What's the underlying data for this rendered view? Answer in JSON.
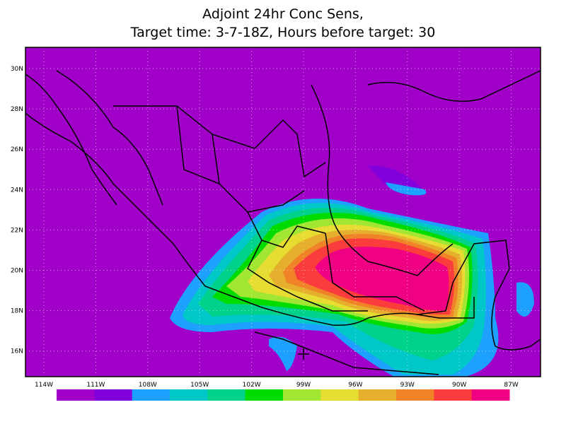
{
  "title": {
    "line1": "Adjoint 24hr Conc Sens,",
    "line2": "Target time: 3-7-18Z, Hours before target: 30"
  },
  "lat_labels": [
    "30N",
    "28N",
    "26N",
    "24N",
    "22N",
    "20N",
    "18N",
    "16N"
  ],
  "lon_labels": [
    "114W",
    "111W",
    "108W",
    "105W",
    "102W",
    "99W",
    "96W",
    "93W",
    "90W",
    "87W"
  ],
  "colorbar": [
    "#a000c8",
    "#8200dc",
    "#1ea0ff",
    "#00c8c8",
    "#00d28c",
    "#00dc00",
    "#a0e632",
    "#e6dc32",
    "#e6af2d",
    "#f08228",
    "#fa3c3c",
    "#f00082"
  ]
}
